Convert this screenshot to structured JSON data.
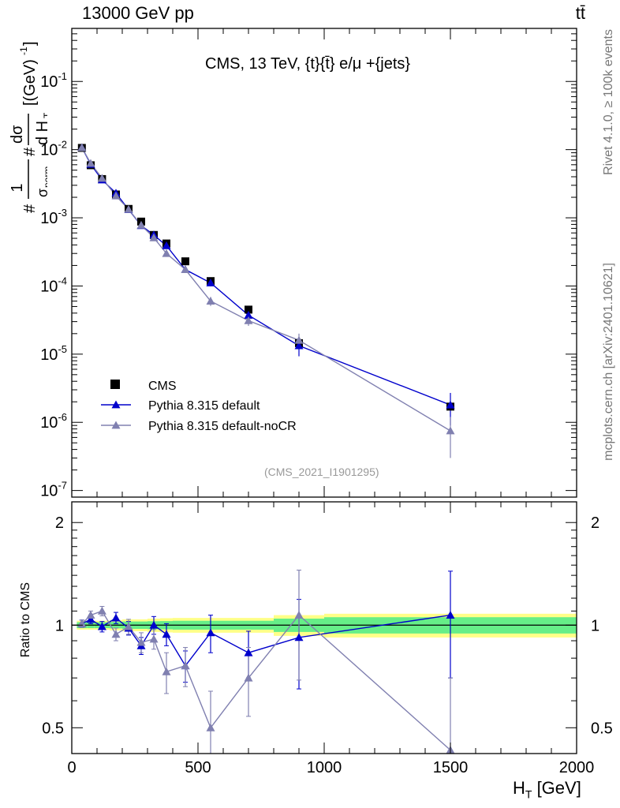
{
  "header": {
    "left": "13000 GeV pp",
    "right": "tt̄"
  },
  "side_labels": {
    "rivet": "Rivet 4.1.0, ≥ 100k events",
    "mcplots": "mcplots.cern.ch [arXiv:2401.10621]"
  },
  "chart_data": [
    {
      "type": "scatter",
      "title": "CMS, 13 TeV, {t}{t̄} e/μ +{jets}",
      "watermark": "(CMS_2021_I1901295)",
      "ylabel": "#1/σ_norm # dσ/d H_T [(GeV)^-1]",
      "yscale": "log",
      "xlim": [
        0,
        2000
      ],
      "ylim": [
        8e-08,
        0.6
      ],
      "y_ticks": [
        "10^-7",
        "10^-6",
        "10^-5",
        "10^-4",
        "10^-3",
        "10^-2",
        "10^-1"
      ],
      "legend_position": "bottom-left",
      "series": [
        {
          "name": "CMS",
          "marker": "square",
          "color": "#000000",
          "x": [
            40,
            75,
            120,
            175,
            225,
            275,
            325,
            375,
            450,
            550,
            700,
            900,
            1500
          ],
          "y": [
            0.0106,
            0.0059,
            0.0037,
            0.0022,
            0.00135,
            0.00088,
            0.00056,
            0.00042,
            0.00023,
            0.000118,
            4.5e-05,
            1.45e-05,
            1.7e-06
          ]
        },
        {
          "name": "Pythia 8.315 default",
          "marker": "triangle",
          "color": "#0000cc",
          "x": [
            40,
            75,
            120,
            175,
            225,
            275,
            325,
            375,
            450,
            550,
            700,
            900,
            1500
          ],
          "y": [
            0.0107,
            0.0061,
            0.0036,
            0.0023,
            0.00132,
            0.00077,
            0.00056,
            0.00039,
            0.000174,
            0.000111,
            3.73e-05,
            1.33e-05,
            1.8e-06
          ],
          "err_low": [
            0.0003,
            0.0002,
            0.00013,
            0.0001,
            6e-05,
            4e-05,
            4e-05,
            3e-05,
            1.5e-05,
            1.2e-05,
            5e-06,
            4e-06,
            9e-07
          ],
          "err_high": [
            0.0003,
            0.0002,
            0.00013,
            0.0001,
            6e-05,
            4e-05,
            4e-05,
            3e-05,
            1.5e-05,
            1.2e-05,
            5e-06,
            4e-06,
            9e-07
          ]
        },
        {
          "name": "Pythia 8.315 default-noCR",
          "marker": "triangle",
          "color": "#8080b0",
          "x": [
            40,
            75,
            120,
            175,
            225,
            275,
            325,
            375,
            450,
            550,
            700,
            900,
            1500
          ],
          "y": [
            0.0107,
            0.0063,
            0.0038,
            0.0021,
            0.00133,
            0.00078,
            0.00051,
            0.0003,
            0.000174,
            6e-05,
            3.1e-05,
            1.6e-05,
            7.5e-07
          ],
          "err_low": [
            0.0003,
            0.0002,
            0.00013,
            0.0001,
            6e-05,
            4e-05,
            4e-05,
            3e-05,
            1.5e-05,
            9e-06,
            5e-06,
            4e-06,
            4.5e-07
          ],
          "err_high": [
            0.0003,
            0.0002,
            0.00013,
            0.0001,
            6e-05,
            4e-05,
            4e-05,
            3e-05,
            1.5e-05,
            9e-06,
            5e-06,
            4e-06,
            4.5e-07
          ]
        }
      ]
    },
    {
      "type": "scatter",
      "ylabel": "Ratio to CMS",
      "xlabel": "H_T [GeV]",
      "xlim": [
        0,
        2000
      ],
      "ylim": [
        0.42,
        2.3
      ],
      "x_ticks": [
        0,
        500,
        1000,
        1500,
        2000
      ],
      "y_ticks": [
        0.5,
        1,
        2
      ],
      "reference_line": 1,
      "uncertainty_bands": {
        "edges": [
          20,
          60,
          90,
          150,
          200,
          250,
          300,
          350,
          400,
          500,
          600,
          800,
          1000,
          2000
        ],
        "inner_half_width": [
          0.02,
          0.02,
          0.02,
          0.022,
          0.025,
          0.025,
          0.027,
          0.028,
          0.03,
          0.03,
          0.03,
          0.045,
          0.055
        ],
        "outer_half_width": [
          0.03,
          0.03,
          0.03,
          0.035,
          0.04,
          0.04,
          0.045,
          0.048,
          0.05,
          0.05,
          0.05,
          0.07,
          0.08
        ],
        "inner_color": "#66ee88",
        "outer_color": "#ffff88"
      },
      "series": [
        {
          "name": "Pythia 8.315 default",
          "color": "#0000cc",
          "x": [
            40,
            75,
            120,
            175,
            225,
            275,
            325,
            375,
            450,
            550,
            700,
            900,
            1500
          ],
          "y": [
            1.01,
            1.04,
            0.99,
            1.05,
            0.98,
            0.87,
            1.0,
            0.94,
            0.76,
            0.95,
            0.83,
            0.92,
            1.07
          ],
          "err": [
            0.025,
            0.03,
            0.035,
            0.04,
            0.045,
            0.05,
            0.06,
            0.07,
            0.08,
            0.12,
            0.13,
            0.27,
            0.37
          ]
        },
        {
          "name": "Pythia 8.315 default-noCR",
          "color": "#8080b0",
          "x": [
            40,
            75,
            120,
            175,
            225,
            275,
            325,
            375,
            450,
            550,
            700,
            900,
            1500
          ],
          "y": [
            1.01,
            1.07,
            1.1,
            0.94,
            0.99,
            0.89,
            0.91,
            0.73,
            0.76,
            0.5,
            0.7,
            1.07,
            0.43
          ],
          "err": [
            0.025,
            0.03,
            0.035,
            0.04,
            0.05,
            0.06,
            0.06,
            0.1,
            0.1,
            0.14,
            0.16,
            0.38,
            0.27
          ]
        }
      ]
    }
  ]
}
